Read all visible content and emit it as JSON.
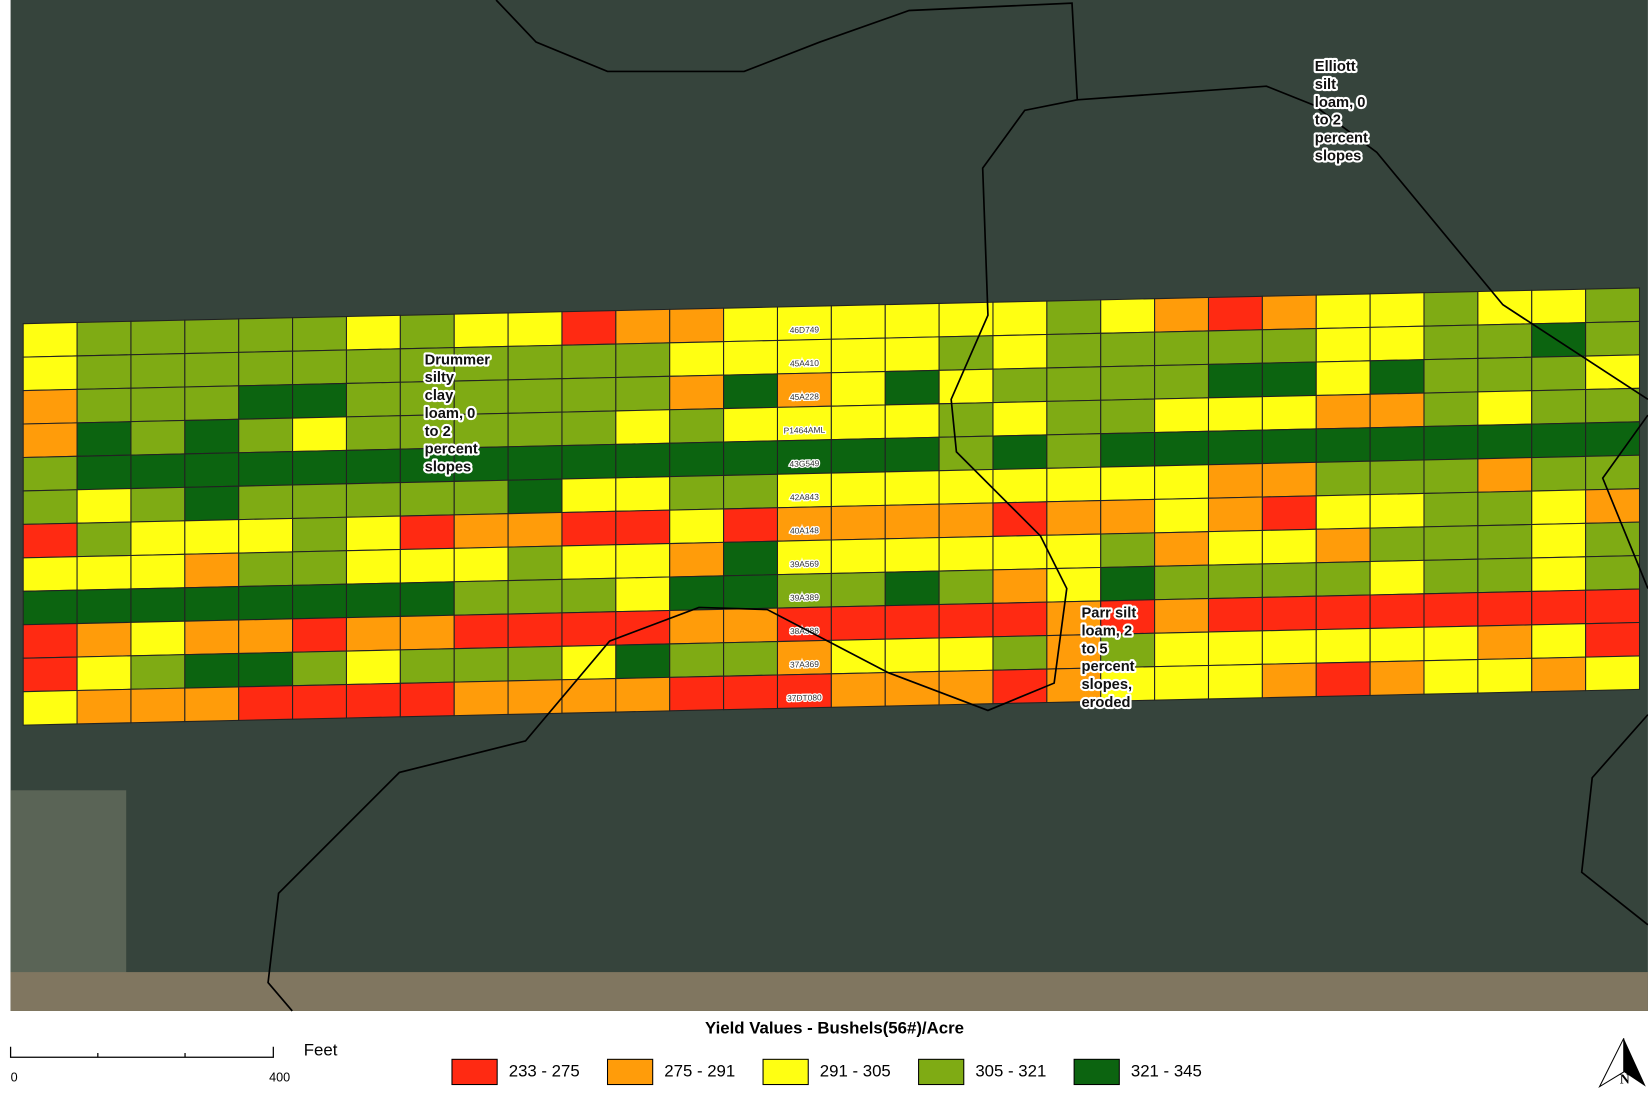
{
  "map": {
    "row_labels": [
      "46D749",
      "45A410",
      "45A228",
      "P1464AML",
      "43G549",
      "42A843",
      "40A148",
      "39A569",
      "39A389",
      "38A388",
      "37A369",
      "37DT080"
    ],
    "grid": [
      [
        2,
        3,
        3,
        3,
        3,
        3,
        2,
        3,
        2,
        2,
        0,
        1,
        1,
        2,
        2,
        2,
        2,
        2,
        2,
        3,
        2,
        1,
        0,
        1,
        2,
        2,
        3,
        2,
        2,
        3
      ],
      [
        2,
        3,
        3,
        3,
        3,
        3,
        3,
        3,
        3,
        3,
        3,
        3,
        2,
        2,
        2,
        2,
        2,
        3,
        2,
        3,
        3,
        3,
        3,
        3,
        2,
        2,
        3,
        3,
        4,
        3
      ],
      [
        1,
        3,
        3,
        3,
        4,
        4,
        3,
        3,
        3,
        3,
        3,
        3,
        1,
        4,
        1,
        2,
        4,
        2,
        3,
        3,
        3,
        3,
        4,
        4,
        2,
        4,
        3,
        3,
        3,
        2
      ],
      [
        1,
        4,
        3,
        4,
        3,
        2,
        3,
        3,
        3,
        3,
        3,
        2,
        3,
        2,
        2,
        2,
        2,
        3,
        2,
        3,
        3,
        2,
        2,
        2,
        1,
        1,
        3,
        2,
        3,
        3
      ],
      [
        3,
        4,
        4,
        4,
        4,
        4,
        4,
        4,
        4,
        4,
        4,
        4,
        4,
        4,
        4,
        4,
        4,
        3,
        4,
        3,
        4,
        4,
        4,
        4,
        4,
        4,
        4,
        4,
        4,
        4
      ],
      [
        3,
        2,
        3,
        4,
        3,
        3,
        3,
        3,
        3,
        4,
        2,
        2,
        3,
        3,
        2,
        2,
        2,
        2,
        2,
        2,
        2,
        2,
        1,
        1,
        3,
        3,
        3,
        1,
        3,
        3
      ],
      [
        0,
        3,
        2,
        2,
        2,
        3,
        2,
        0,
        1,
        1,
        0,
        0,
        2,
        0,
        1,
        1,
        1,
        1,
        0,
        1,
        1,
        2,
        1,
        0,
        2,
        2,
        3,
        3,
        2,
        1
      ],
      [
        2,
        2,
        2,
        1,
        3,
        3,
        2,
        2,
        2,
        3,
        2,
        2,
        1,
        4,
        2,
        2,
        2,
        2,
        2,
        2,
        3,
        1,
        2,
        2,
        1,
        3,
        3,
        3,
        2,
        3
      ],
      [
        4,
        4,
        4,
        4,
        4,
        4,
        4,
        4,
        3,
        3,
        3,
        2,
        4,
        4,
        3,
        3,
        4,
        3,
        1,
        2,
        4,
        3,
        3,
        3,
        3,
        2,
        3,
        3,
        2,
        3
      ],
      [
        0,
        1,
        2,
        1,
        1,
        0,
        1,
        1,
        0,
        0,
        0,
        0,
        1,
        1,
        0,
        0,
        0,
        0,
        0,
        1,
        0,
        1,
        0,
        0,
        0,
        0,
        0,
        0,
        0,
        0
      ],
      [
        0,
        2,
        3,
        4,
        4,
        3,
        2,
        3,
        3,
        3,
        2,
        4,
        3,
        3,
        1,
        2,
        2,
        2,
        3,
        1,
        3,
        2,
        2,
        2,
        2,
        2,
        2,
        1,
        2,
        0
      ],
      [
        2,
        1,
        1,
        1,
        0,
        0,
        0,
        0,
        1,
        1,
        1,
        1,
        0,
        0,
        0,
        1,
        1,
        1,
        0,
        1,
        2,
        2,
        2,
        1,
        0,
        1,
        2,
        2,
        1,
        2
      ]
    ]
  },
  "soil_labels": [
    [
      "Drummer",
      "silty",
      "clay",
      "loam, 0",
      "to 2",
      "percent",
      "slopes"
    ],
    [
      "Elliott",
      "silt",
      "loam, 0",
      "to 2",
      "percent",
      "slopes"
    ],
    [
      "Parr silt",
      "loam, 2",
      "to 5",
      "percent",
      "slopes,",
      "eroded"
    ]
  ],
  "legend": {
    "title": "Yield Values - Bushels(56#)/Acre",
    "classes": [
      {
        "label": "233 - 275",
        "color": "#ff2a12"
      },
      {
        "label": "275 - 291",
        "color": "#ff9c0a"
      },
      {
        "label": "291 - 305",
        "color": "#ffff12"
      },
      {
        "label": "305 - 321",
        "color": "#7fab14"
      },
      {
        "label": "321 - 345",
        "color": "#0c6410"
      }
    ]
  },
  "scale_bar": {
    "unit": "Feet",
    "ticks": [
      "0",
      "400"
    ]
  },
  "north": "N"
}
